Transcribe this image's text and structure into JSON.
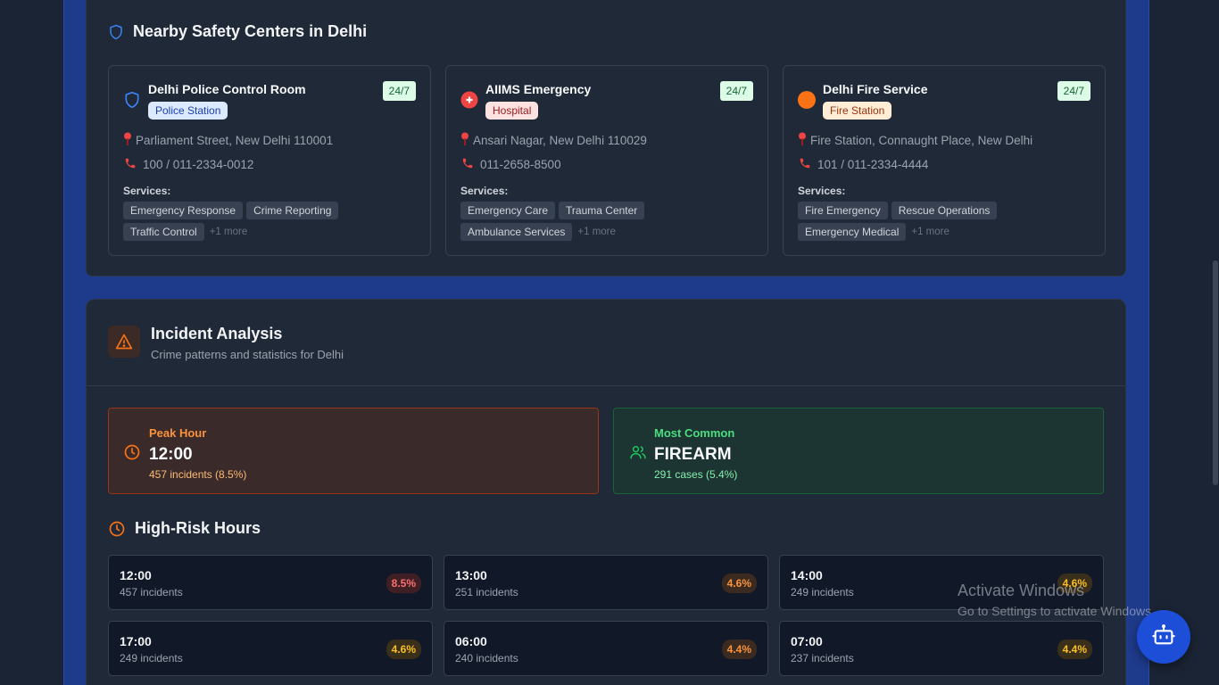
{
  "safety_centers": {
    "title": "Nearby Safety Centers in Delhi",
    "centers": [
      {
        "name": "Delhi Police Control Room",
        "type": "Police Station",
        "availability": "24/7",
        "address": "Parliament Street, New Delhi 110001",
        "phone": "100 / 011-2334-0012",
        "services_label": "Services:",
        "services": [
          "Emergency Response",
          "Crime Reporting",
          "Traffic Control"
        ],
        "more": "+1 more",
        "icon": "shield-icon",
        "icon_color": "#3b82f6"
      },
      {
        "name": "AIIMS Emergency",
        "type": "Hospital",
        "availability": "24/7",
        "address": "Ansari Nagar, New Delhi 110029",
        "phone": "011-2658-8500",
        "services_label": "Services:",
        "services": [
          "Emergency Care",
          "Trauma Center",
          "Ambulance Services"
        ],
        "more": "+1 more",
        "icon": "hospital-cross-icon",
        "icon_color": "#ef4444"
      },
      {
        "name": "Delhi Fire Service",
        "type": "Fire Station",
        "availability": "24/7",
        "address": "Fire Station, Connaught Place, New Delhi",
        "phone": "101 / 011-2334-4444",
        "services_label": "Services:",
        "services": [
          "Fire Emergency",
          "Rescue Operations",
          "Emergency Medical"
        ],
        "more": "+1 more",
        "icon": "fire-circle-icon",
        "icon_color": "#f97316"
      }
    ]
  },
  "incident_analysis": {
    "title": "Incident Analysis",
    "subtitle": "Crime patterns and statistics for Delhi",
    "peak": {
      "label": "Peak Hour",
      "value": "12:00",
      "detail": "457 incidents (8.5%)"
    },
    "common": {
      "label": "Most Common",
      "value": "FIREARM",
      "detail": "291 cases (5.4%)"
    },
    "high_risk_title": "High-Risk Hours",
    "hours": [
      {
        "time": "12:00",
        "count": "457 incidents",
        "pct": "8.5%",
        "level": "red"
      },
      {
        "time": "13:00",
        "count": "251 incidents",
        "pct": "4.6%",
        "level": "orange"
      },
      {
        "time": "14:00",
        "count": "249 incidents",
        "pct": "4.6%",
        "level": "amber"
      },
      {
        "time": "17:00",
        "count": "249 incidents",
        "pct": "4.6%",
        "level": "amber"
      },
      {
        "time": "06:00",
        "count": "240 incidents",
        "pct": "4.4%",
        "level": "orange"
      },
      {
        "time": "07:00",
        "count": "237 incidents",
        "pct": "4.4%",
        "level": "amber"
      }
    ]
  },
  "watermark": {
    "line1": "Activate Windows",
    "line2": "Go to Settings to activate Windows."
  },
  "fab": {
    "icon": "robot-icon"
  }
}
